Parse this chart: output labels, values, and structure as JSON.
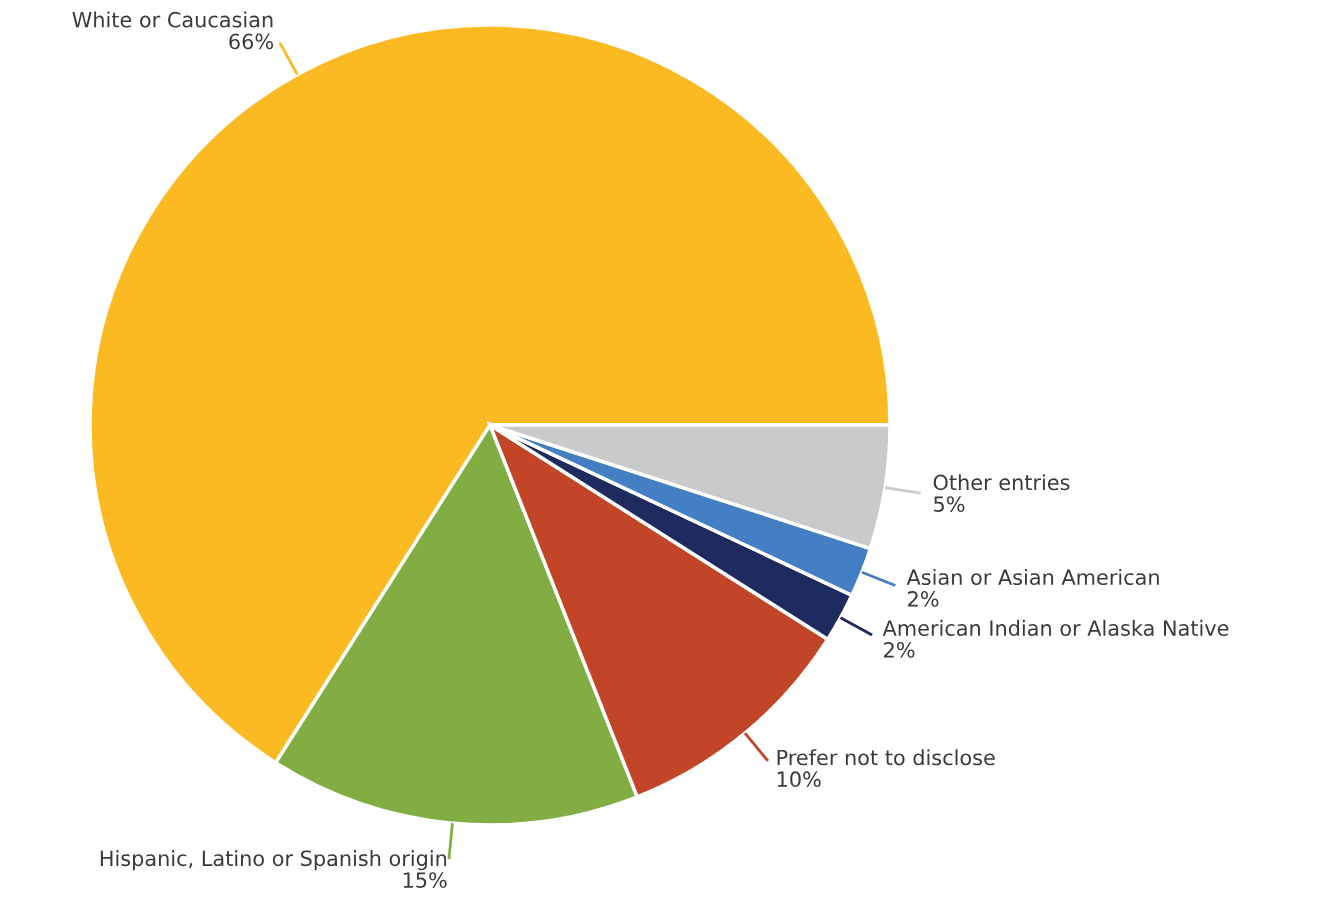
{
  "chart_data": {
    "type": "pie",
    "categories": [
      "White or Caucasian",
      "Hispanic, Latino or Spanish origin",
      "Prefer not to disclose",
      "American Indian or Alaska Native",
      "Asian or Asian American",
      "Other entries"
    ],
    "values": [
      66,
      15,
      10,
      2,
      2,
      5
    ],
    "colors": [
      "#fbba22",
      "#82ad42",
      "#c24527",
      "#1f2a5e",
      "#437fc2",
      "#c9cacc"
    ],
    "value_labels": [
      "66%",
      "15%",
      "10%",
      "2%",
      "2%",
      "5%"
    ]
  }
}
